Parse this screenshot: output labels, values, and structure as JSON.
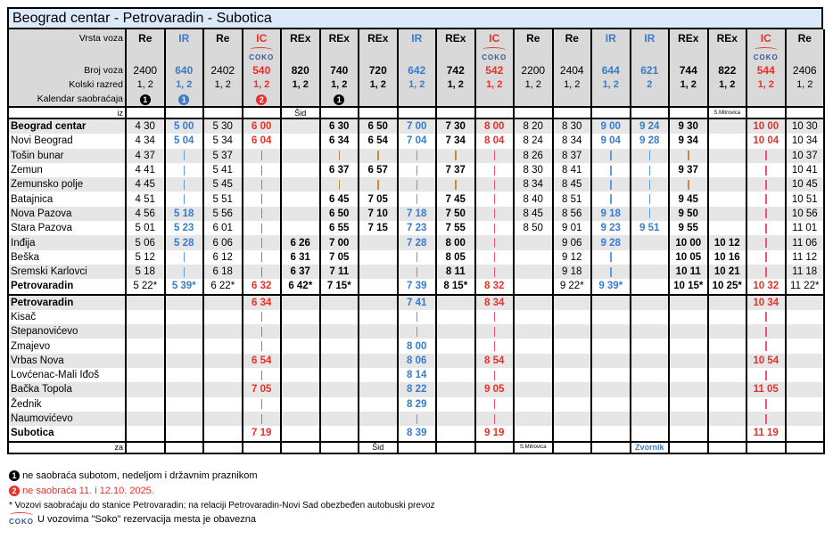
{
  "title": "Beograd centar - Petrovaradin - Subotica",
  "labels": {
    "vrsta": "Vrsta voza",
    "broj": "Broj voza",
    "razred": "Kolski razred",
    "kalendar": "Kalendar saobraćaja",
    "iz": "iz",
    "za": "za"
  },
  "logo_text": "COKO",
  "colors": {
    "re": "#000000",
    "ir": "#3a7cc8",
    "ic": "#e8302a",
    "rex": "#000000",
    "header_bg": "#d9d9d9",
    "title_bg": "#dce9f8"
  },
  "stations_upper": [
    {
      "name": "Beograd centar",
      "bold": true
    },
    {
      "name": "Novi Beograd"
    },
    {
      "name": "Tošin bunar"
    },
    {
      "name": "Zemun"
    },
    {
      "name": "Zemunsko polje"
    },
    {
      "name": "Batajnica"
    },
    {
      "name": "Nova Pazova"
    },
    {
      "name": "Stara Pazova"
    },
    {
      "name": "Inđija"
    },
    {
      "name": "Beška"
    },
    {
      "name": "Sremski Karlovci"
    },
    {
      "name": "Petrovaradin",
      "bold": true
    }
  ],
  "stations_lower": [
    {
      "name": "Petrovaradin",
      "bold": true
    },
    {
      "name": "Kisač"
    },
    {
      "name": "Stepanovićevo"
    },
    {
      "name": "Zmajevo"
    },
    {
      "name": "Vrbas Nova"
    },
    {
      "name": "Lovćenac-Mali Iđoš"
    },
    {
      "name": "Bačka Topola"
    },
    {
      "name": "Žednik"
    },
    {
      "name": "Naumovićevo"
    },
    {
      "name": "Subotica",
      "bold": true
    }
  ],
  "trains": [
    {
      "type": "Re",
      "cls": "re",
      "number": "2400",
      "razred": "1, 2",
      "cal": "1",
      "cal_color": "#000000",
      "iz": "",
      "za": "",
      "up": [
        "4 30",
        "4 34",
        "4 37",
        "4 41",
        "4 45",
        "4 51",
        "4 56",
        "5 01",
        "5 06",
        "5 12",
        "5 18",
        "5 22*"
      ],
      "low": [
        "",
        "",
        "",
        "",
        "",
        "",
        "",
        "",
        "",
        ""
      ]
    },
    {
      "type": "IR",
      "cls": "ir",
      "number": "640",
      "razred": "1, 2",
      "cal": "1",
      "cal_color": "#3a7cc8",
      "iz": "",
      "za": "",
      "up": [
        "5 00",
        "5 04",
        "|",
        "|",
        "|",
        "|",
        "5 18",
        "5 23",
        "5 28",
        "|",
        "|",
        "5 39*"
      ],
      "low": [
        "",
        "",
        "",
        "",
        "",
        "",
        "",
        "",
        "",
        ""
      ]
    },
    {
      "type": "Re",
      "cls": "re",
      "number": "2402",
      "razred": "1, 2",
      "cal": "",
      "iz": "",
      "za": "",
      "up": [
        "5 30",
        "5 34",
        "5 37",
        "5 41",
        "5 45",
        "5 51",
        "5 56",
        "6 01",
        "6 06",
        "6 12",
        "6 18",
        "6 22*"
      ],
      "low": [
        "",
        "",
        "",
        "",
        "",
        "",
        "",
        "",
        "",
        ""
      ]
    },
    {
      "type": "IC",
      "cls": "ic",
      "soko": true,
      "number": "540",
      "razred": "1, 2",
      "cal": "2",
      "cal_color": "#e8302a",
      "iz": "",
      "za": "",
      "up": [
        "6 00",
        "6 04",
        "|",
        "|",
        "|",
        "|",
        "|",
        "|",
        "|",
        "|",
        "|",
        "6 32"
      ],
      "low": [
        "6 34",
        "|",
        "|",
        "|",
        "6 54",
        "|",
        "7 05",
        "|",
        "|",
        "7 19"
      ]
    },
    {
      "type": "REx",
      "cls": "rex",
      "number": "820",
      "razred": "1, 2",
      "cal": "",
      "iz": "Šid",
      "za": "",
      "up": [
        "",
        "",
        "",
        "",
        "",
        "",
        "",
        "",
        "6 26",
        "6 31",
        "6 37",
        "6 42*"
      ],
      "low": [
        "",
        "",
        "",
        "",
        "",
        "",
        "",
        "",
        "",
        ""
      ]
    },
    {
      "type": "REx",
      "cls": "rex",
      "number": "740",
      "razred": "1, 2",
      "cal": "1",
      "cal_color": "#000000",
      "iz": "",
      "za": "",
      "up": [
        "6 30",
        "6 34",
        "|",
        "6 37",
        "|",
        "6 45",
        "6 50",
        "6 55",
        "7 00",
        "7 05",
        "7 11",
        "7 15*"
      ],
      "low": [
        "",
        "",
        "",
        "",
        "",
        "",
        "",
        "",
        "",
        ""
      ]
    },
    {
      "type": "REx",
      "cls": "rex",
      "number": "720",
      "razred": "1, 2",
      "cal": "",
      "iz": "",
      "za": "Šid",
      "up": [
        "6 50",
        "6 54",
        "|",
        "6 57",
        "|",
        "7 05",
        "7 10",
        "7 15",
        "",
        "",
        "",
        ""
      ],
      "low": [
        "",
        "",
        "",
        "",
        "",
        "",
        "",
        "",
        "",
        ""
      ]
    },
    {
      "type": "IR",
      "cls": "ir",
      "number": "642",
      "razred": "1, 2",
      "cal": "",
      "iz": "",
      "za": "",
      "up": [
        "7 00",
        "7 04",
        "|",
        "|",
        "|",
        "|",
        "7 18",
        "7 23",
        "7 28",
        "|",
        "|",
        "7 39"
      ],
      "low": [
        "7 41",
        "|",
        "|",
        "8 00",
        "8 06",
        "8 14",
        "8 22",
        "8 29",
        "|",
        "8 39"
      ]
    },
    {
      "type": "REx",
      "cls": "rex",
      "number": "742",
      "razred": "1, 2",
      "cal": "",
      "iz": "",
      "za": "",
      "up": [
        "7 30",
        "7 34",
        "|",
        "7 37",
        "|",
        "7 45",
        "7 50",
        "7 55",
        "8 00",
        "8 05",
        "8 11",
        "8 15*"
      ],
      "low": [
        "",
        "",
        "",
        "",
        "",
        "",
        "",
        "",
        "",
        ""
      ]
    },
    {
      "type": "IC",
      "cls": "ic",
      "soko": true,
      "number": "542",
      "razred": "1, 2",
      "cal": "",
      "iz": "",
      "za": "",
      "up": [
        "8 00",
        "8 04",
        "|",
        "|",
        "|",
        "|",
        "|",
        "|",
        "|",
        "|",
        "|",
        "8 32"
      ],
      "low": [
        "8 34",
        "|",
        "|",
        "|",
        "8 54",
        "|",
        "9 05",
        "|",
        "|",
        "9 19"
      ]
    },
    {
      "type": "Re",
      "cls": "re",
      "number": "2200",
      "razred": "1, 2",
      "cal": "",
      "iz": "",
      "za": "S.Mitrovica",
      "up": [
        "8 20",
        "8 24",
        "8 26",
        "8 30",
        "8 34",
        "8 40",
        "8 45",
        "8 50",
        "",
        "",
        "",
        ""
      ],
      "low": [
        "",
        "",
        "",
        "",
        "",
        "",
        "",
        "",
        "",
        ""
      ]
    },
    {
      "type": "Re",
      "cls": "re",
      "number": "2404",
      "razred": "1, 2",
      "cal": "",
      "iz": "",
      "za": "",
      "up": [
        "8 30",
        "8 34",
        "8 37",
        "8 41",
        "8 45",
        "8 51",
        "8 56",
        "9 01",
        "9 06",
        "9 12",
        "9 18",
        "9 22*"
      ],
      "low": [
        "",
        "",
        "",
        "",
        "",
        "",
        "",
        "",
        "",
        ""
      ]
    },
    {
      "type": "IR",
      "cls": "ir",
      "number": "644",
      "razred": "1, 2",
      "cal": "",
      "iz": "",
      "za": "",
      "up": [
        "9 00",
        "9 04",
        "|",
        "|",
        "|",
        "|",
        "9 18",
        "9 23",
        "9 28",
        "|",
        "|",
        "9 39*"
      ],
      "low": [
        "",
        "",
        "",
        "",
        "",
        "",
        "",
        "",
        "",
        ""
      ]
    },
    {
      "type": "IR",
      "cls": "ir",
      "number": "621",
      "razred": "2",
      "cal": "",
      "iz": "",
      "za": "Zvornik",
      "up": [
        "9 24",
        "9 28",
        "|",
        "|",
        "|",
        "|",
        "|",
        "9 51",
        "",
        "",
        "",
        ""
      ],
      "low": [
        "",
        "",
        "",
        "",
        "",
        "",
        "",
        "",
        "",
        ""
      ]
    },
    {
      "type": "REx",
      "cls": "rex",
      "number": "744",
      "razred": "1, 2",
      "cal": "",
      "iz": "",
      "za": "",
      "up": [
        "9 30",
        "9 34",
        "|",
        "9 37",
        "|",
        "9 45",
        "9 50",
        "9 55",
        "10 00",
        "10 05",
        "10 11",
        "10 15*"
      ],
      "low": [
        "",
        "",
        "",
        "",
        "",
        "",
        "",
        "",
        "",
        ""
      ]
    },
    {
      "type": "REx",
      "cls": "rex",
      "number": "822",
      "razred": "1, 2",
      "cal": "",
      "iz": "S.Mitrovica",
      "za": "",
      "up": [
        "",
        "",
        "",
        "",
        "",
        "",
        "",
        "",
        "10 12",
        "10 16",
        "10 21",
        "10 25*"
      ],
      "low": [
        "",
        "",
        "",
        "",
        "",
        "",
        "",
        "",
        "",
        ""
      ]
    },
    {
      "type": "IC",
      "cls": "ic",
      "soko": true,
      "number": "544",
      "razred": "1, 2",
      "cal": "",
      "iz": "",
      "za": "",
      "up": [
        "10 00",
        "10 04",
        "|",
        "|",
        "|",
        "|",
        "|",
        "|",
        "|",
        "|",
        "|",
        "10 32"
      ],
      "low": [
        "10 34",
        "|",
        "|",
        "|",
        "10 54",
        "|",
        "11 05",
        "|",
        "|",
        "11 19"
      ]
    },
    {
      "type": "Re",
      "cls": "re",
      "number": "2406",
      "razred": "1, 2",
      "cal": "",
      "iz": "",
      "za": "",
      "up": [
        "10 30",
        "10 34",
        "10 37",
        "10 41",
        "10 45",
        "10 51",
        "10 56",
        "11 01",
        "11 06",
        "11 12",
        "11 18",
        "11 22*"
      ],
      "low": [
        "",
        "",
        "",
        "",
        "",
        "",
        "",
        "",
        "",
        ""
      ]
    }
  ],
  "legend": {
    "note1_marker": "1",
    "note1": "ne saobraća subotom, nedeljom i državnim praznikom",
    "note2_marker": "2",
    "note2": "ne saobraća 11. i 12.10. 2025.",
    "note3": "* Vozovi saobraćaju do stanice Petrovaradin; na relaciji Petrovaradin-Novi Sad obezbeđen autobuski prevoz",
    "note4": "U vozovima \"Soko\" rezervacija mesta je obavezna"
  }
}
